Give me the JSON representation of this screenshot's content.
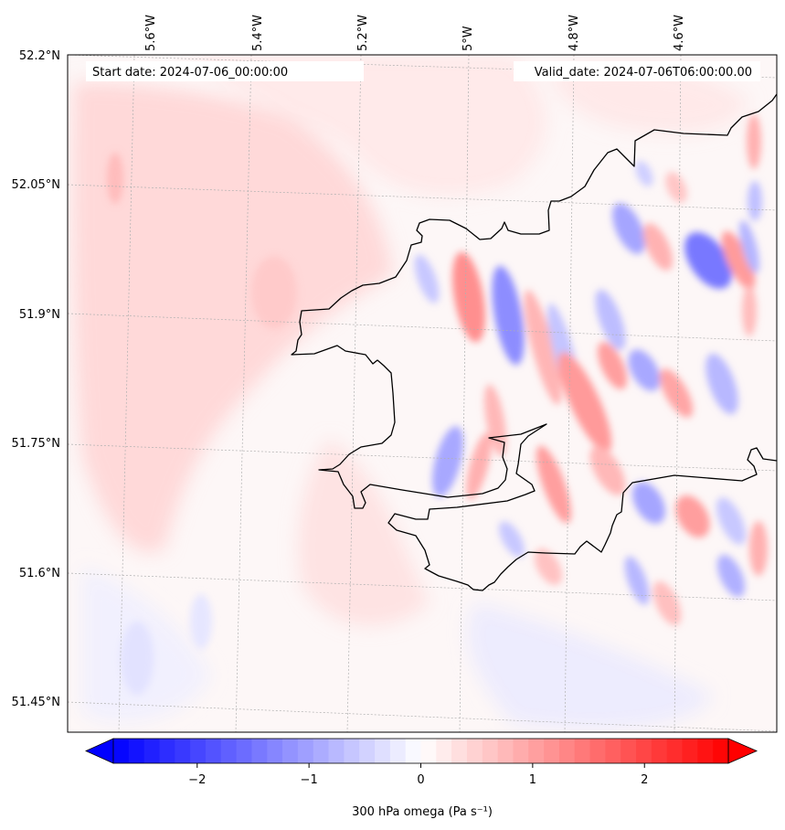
{
  "header": {
    "start_date": "Start date: 2024-07-06_00:00:00",
    "valid_date": "Valid_date: 2024-07-06T06:00:00.00"
  },
  "map": {
    "lon_labels": [
      "5.6°W",
      "5.4°W",
      "5.2°W",
      "5°W",
      "4.8°W",
      "4.6°W"
    ],
    "lat_labels": [
      "52.2°N",
      "52.05°N",
      "51.9°N",
      "51.75°N",
      "51.6°N",
      "51.45°N"
    ],
    "gridlines": true,
    "colors": {
      "positive": "#ff0000",
      "negative": "#0000ff",
      "neutral": "#ffffff",
      "coastline": "#000000"
    }
  },
  "colorbar": {
    "label": "300 hPa omega (Pa s⁻¹)",
    "tick_labels": [
      "−2",
      "−1",
      "0",
      "1",
      "2"
    ],
    "range": [
      -2.75,
      2.75
    ],
    "extend": "both"
  },
  "chart_data": {
    "type": "heatmap",
    "field": "300 hPa omega",
    "units": "Pa s⁻¹",
    "vmin": -2.75,
    "vmax": 2.75,
    "colormap": "bwr",
    "extent": {
      "lon": [
        -5.8,
        -4.45
      ],
      "lat": [
        51.42,
        52.2
      ]
    }
  }
}
